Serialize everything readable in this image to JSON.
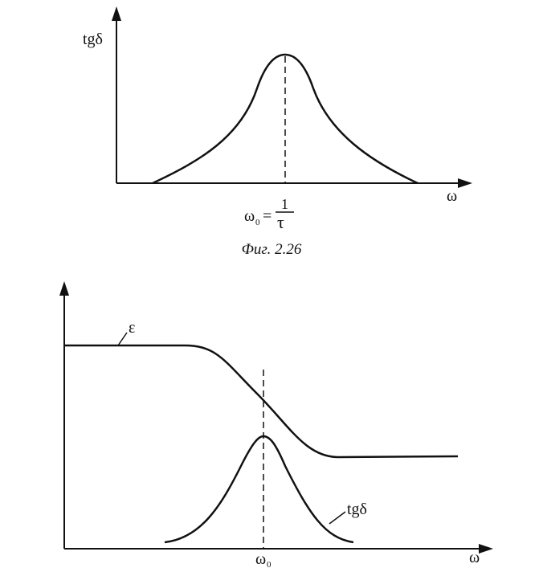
{
  "figure1": {
    "y_label": "tgδ",
    "x_label": "ω",
    "peak_label": {
      "omega": "ω",
      "subscript": "0",
      "equals": "=",
      "numerator": "1",
      "denominator": "τ"
    },
    "caption": "Фиг. 2.26"
  },
  "figure2": {
    "epsilon_label": "ε",
    "tg_label": "tgδ",
    "peak_label": {
      "omega": "ω",
      "subscript": "0"
    },
    "x_label": "ω"
  }
}
